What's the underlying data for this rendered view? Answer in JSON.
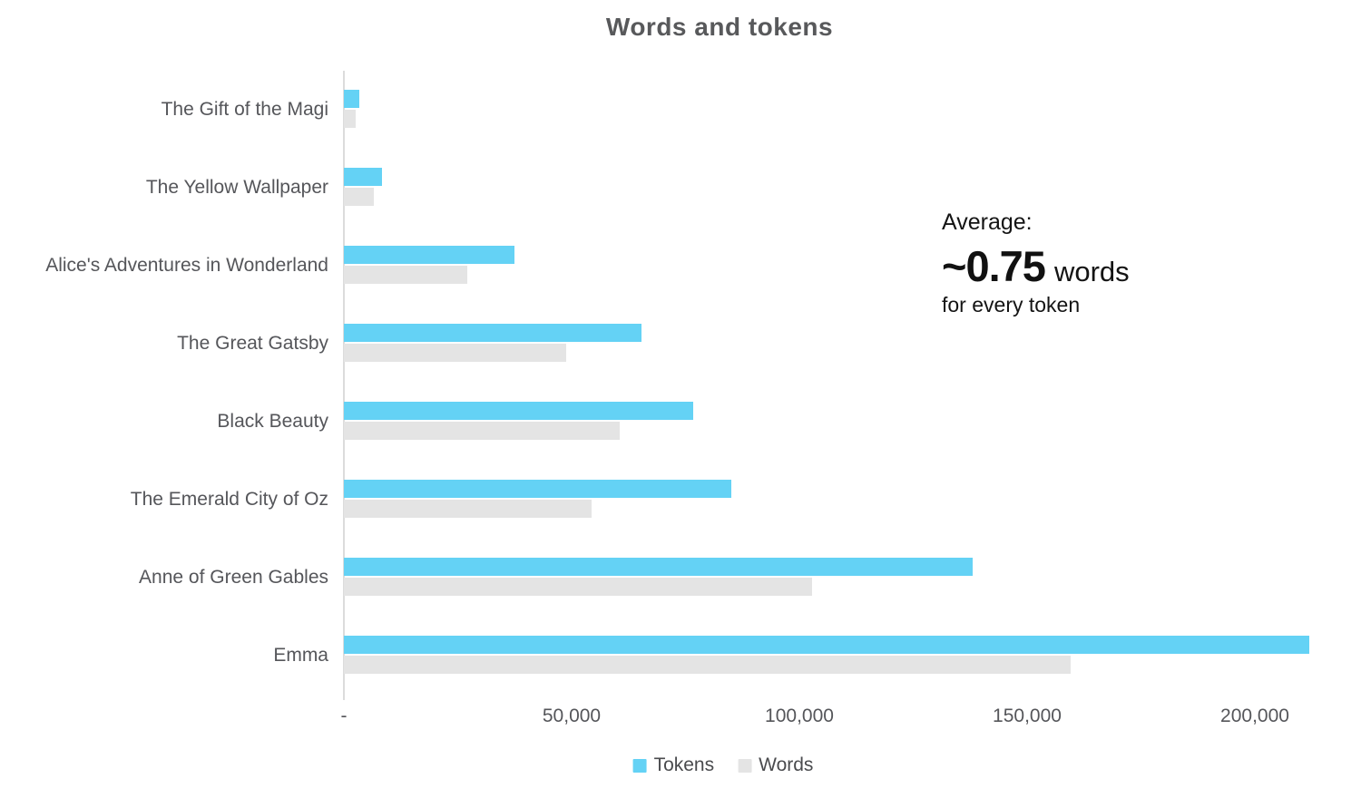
{
  "title": "Words and tokens",
  "annotation": {
    "label": "Average:",
    "value": "~0.75",
    "value_suffix": "words",
    "subtext": "for every token"
  },
  "legend": {
    "position": "bottom",
    "items": [
      {
        "label": "Tokens",
        "color": "#64d2f5"
      },
      {
        "label": "Words",
        "color": "#e4e4e4"
      }
    ]
  },
  "colors": {
    "tokens_bar": "#64d2f5",
    "words_bar": "#e4e4e4",
    "title_text": "#58595b",
    "label_text": "#55565a",
    "axis_line": "#dcdcdc",
    "annotation_text": "#141414",
    "background": "#ffffff"
  },
  "chart_data": {
    "type": "bar",
    "orientation": "horizontal",
    "title": "Words and tokens",
    "xlabel": "",
    "ylabel": "",
    "grid": false,
    "legend_position": "bottom",
    "xlim": [
      0,
      215000
    ],
    "x_ticks": [
      {
        "label": "-",
        "value": 0
      },
      {
        "label": "50,000",
        "value": 50000
      },
      {
        "label": "100,000",
        "value": 100000
      },
      {
        "label": "150,000",
        "value": 150000
      },
      {
        "label": "200,000",
        "value": 200000
      }
    ],
    "categories": [
      "The Gift of the Magi",
      "The Yellow Wallpaper",
      "Alice's Adventures in Wonderland",
      "The Great Gatsby",
      "Black Beauty",
      "The Emerald City of Oz",
      "Anne of Green Gables",
      "Emma"
    ],
    "series": [
      {
        "name": "Tokens",
        "color": "#64d2f5",
        "values": [
          3300,
          8400,
          37400,
          65300,
          76600,
          85000,
          138000,
          212000
        ]
      },
      {
        "name": "Words",
        "color": "#e4e4e4",
        "values": [
          2650,
          6600,
          27100,
          48800,
          60600,
          54400,
          102700,
          159600
        ]
      }
    ]
  }
}
